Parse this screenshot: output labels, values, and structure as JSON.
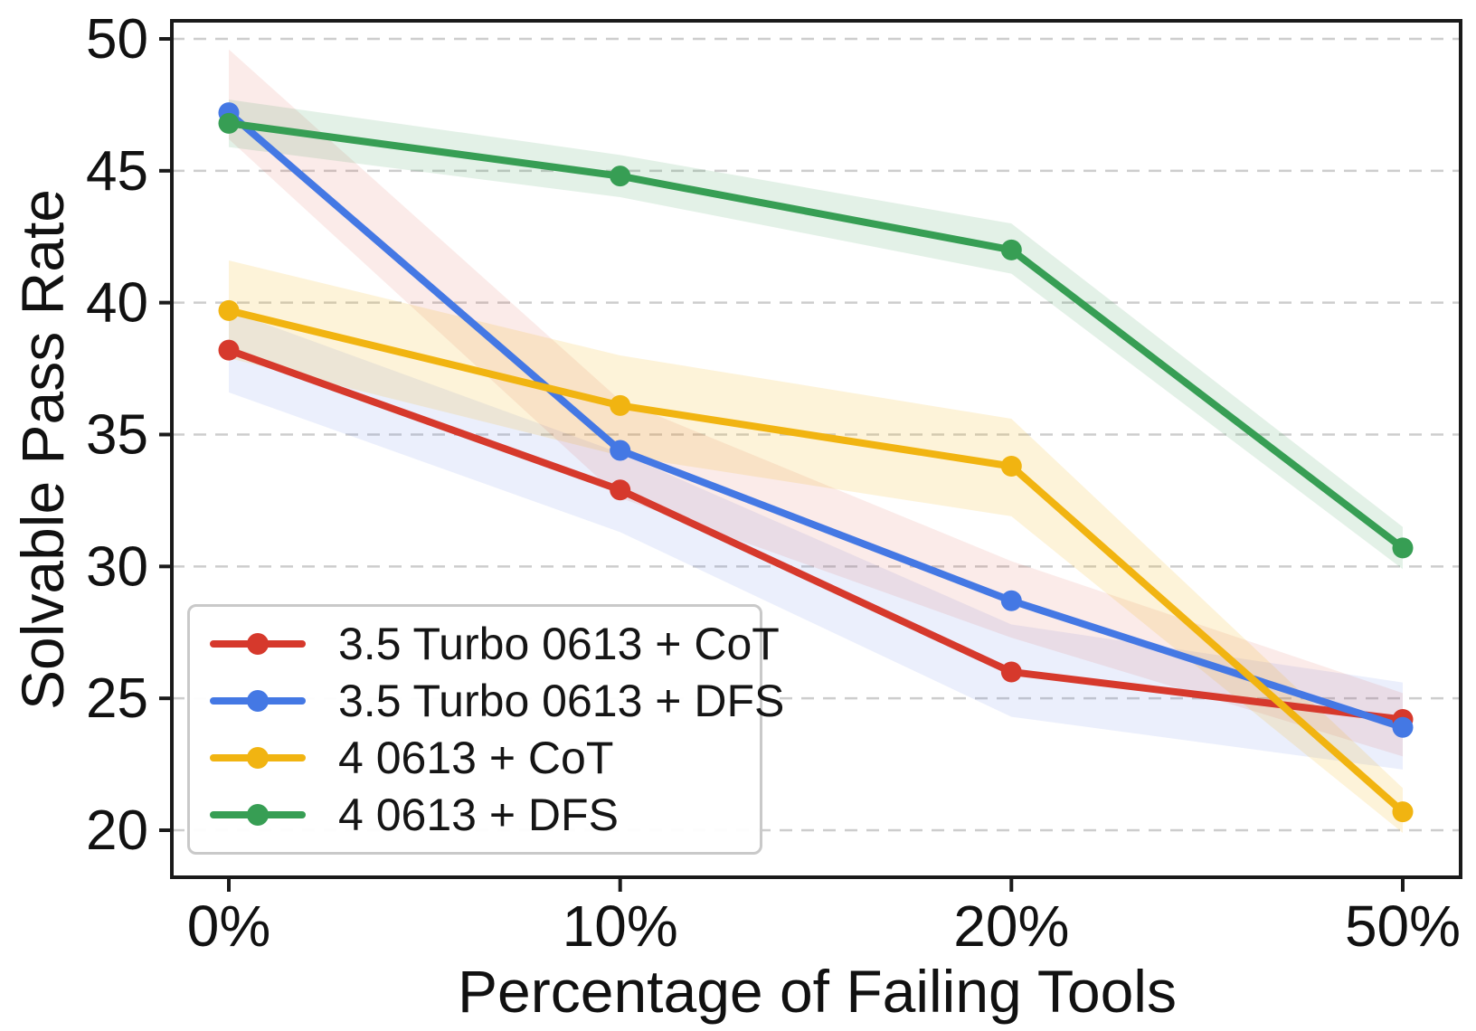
{
  "chart_data": {
    "type": "line",
    "title": "",
    "xlabel": "Percentage of Failing Tools",
    "ylabel": "Solvable Pass Rate",
    "categories": [
      "0%",
      "10%",
      "20%",
      "50%"
    ],
    "y_ticks": [
      20,
      25,
      30,
      35,
      40,
      45,
      50
    ],
    "ylim": [
      18.2,
      50.7
    ],
    "grid": "horizontal, dashed, light gray",
    "grid_color": "#cdcdcd",
    "axis_color": "#1a1a1a",
    "legend_position": "lower-left",
    "marker": "circle",
    "series": [
      {
        "name": "3.5 Turbo 0613 + CoT",
        "color": "#d6392c",
        "band_color": "rgba(98,134,228,0.13)",
        "values": [
          38.2,
          32.9,
          26.0,
          24.2
        ],
        "band_upper": [
          39.7,
          34.3,
          27.8,
          25.6
        ],
        "band_lower": [
          36.6,
          31.3,
          24.3,
          22.3
        ]
      },
      {
        "name": "3.5 Turbo 0613 + DFS",
        "color": "#4478e4",
        "band_color": "rgba(214,57,44,0.10)",
        "values": [
          47.2,
          34.4,
          28.7,
          23.9
        ],
        "band_upper": [
          49.6,
          36.3,
          30.2,
          25.2
        ],
        "band_lower": [
          46.2,
          32.6,
          27.3,
          22.8
        ]
      },
      {
        "name": "4 0613 + CoT",
        "color": "#f1b411",
        "band_color": "rgba(241,180,17,0.16)",
        "values": [
          39.7,
          36.1,
          33.8,
          20.7
        ],
        "band_upper": [
          41.6,
          38.0,
          35.6,
          21.6
        ],
        "band_lower": [
          37.9,
          34.2,
          31.9,
          19.9
        ]
      },
      {
        "name": "4 0613 + DFS",
        "color": "#379e54",
        "band_color": "rgba(55,158,84,0.14)",
        "values": [
          46.8,
          44.8,
          42.0,
          30.7
        ],
        "band_upper": [
          47.7,
          45.6,
          43.0,
          31.5
        ],
        "band_lower": [
          45.9,
          44.0,
          41.1,
          29.9
        ]
      }
    ]
  }
}
